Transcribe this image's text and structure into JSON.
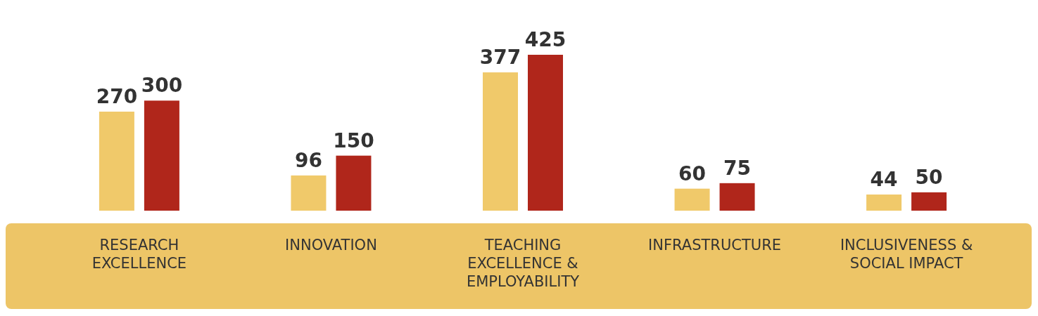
{
  "chart_data": {
    "type": "bar",
    "categories": [
      "RESEARCH EXCELLENCE",
      "INNOVATION",
      "TEACHING EXCELLENCE & EMPLOYABILITY",
      "INFRASTRUCTURE",
      "INCLUSIVENESS & SOCIAL IMPACT"
    ],
    "series": [
      {
        "color": "#f0c96a",
        "values": [
          270,
          96,
          377,
          60,
          44
        ]
      },
      {
        "color": "#b0261b",
        "values": [
          300,
          150,
          425,
          75,
          50
        ]
      }
    ],
    "data_labels": true
  }
}
